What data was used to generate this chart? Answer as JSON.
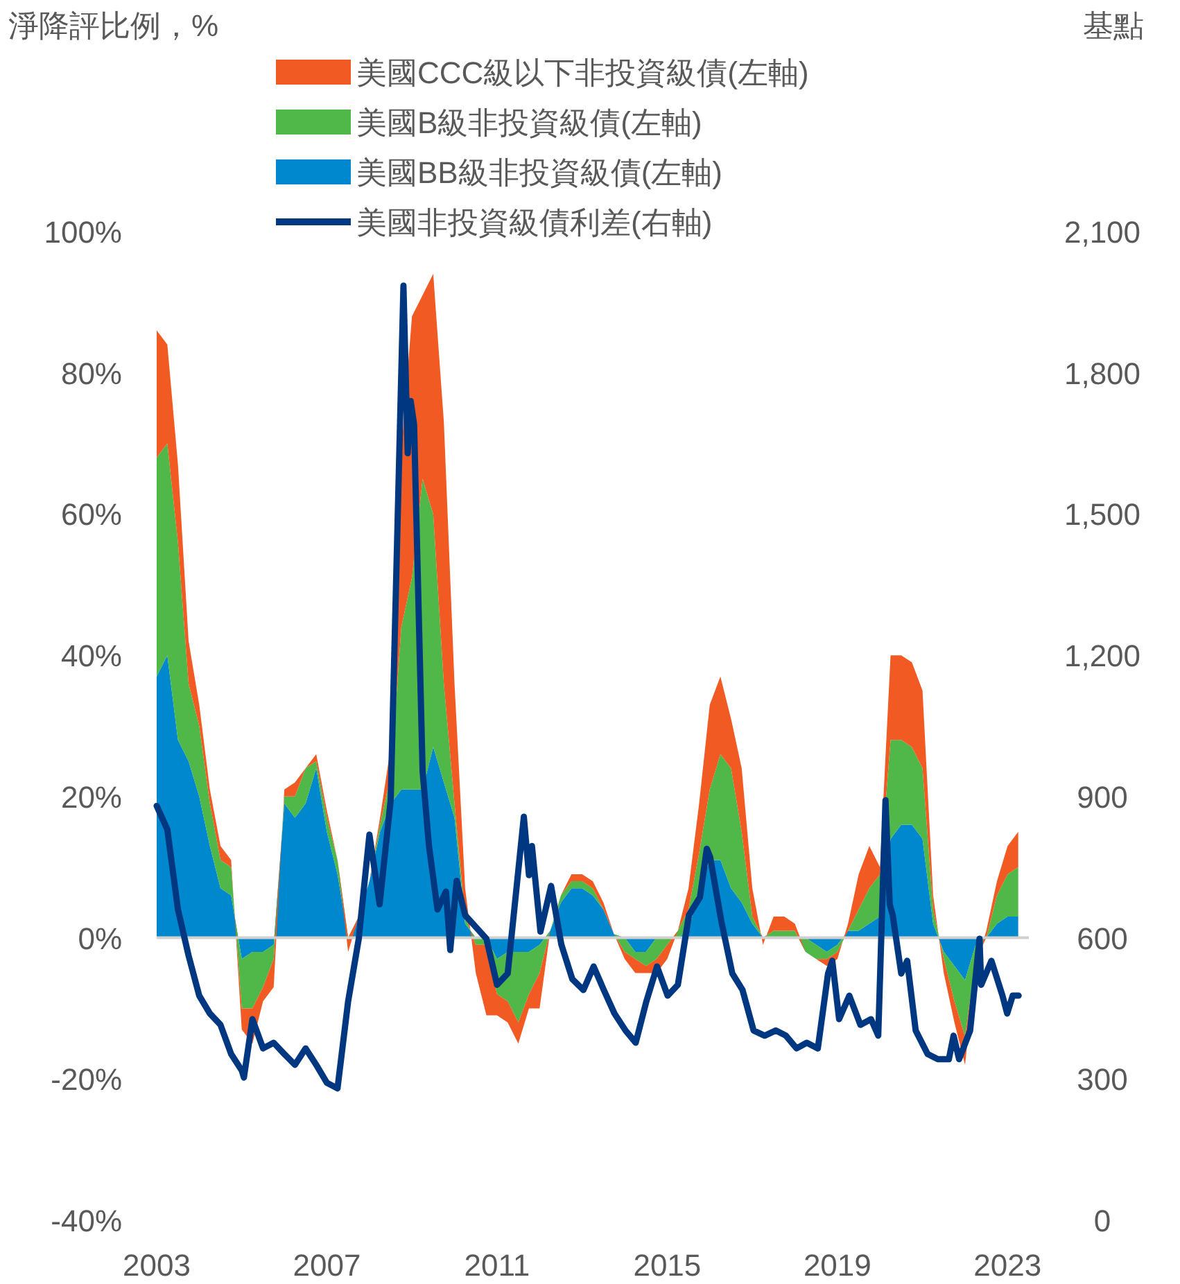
{
  "chart_data": {
    "type": "area",
    "stacked": true,
    "annotations": [
      "淨降評比例，%",
      "基點"
    ],
    "x": [
      2003.0,
      2003.25,
      2003.5,
      2003.75,
      2004.0,
      2004.25,
      2004.5,
      2004.75,
      2005.0,
      2005.25,
      2005.5,
      2005.75,
      2006.0,
      2006.25,
      2006.5,
      2006.75,
      2007.0,
      2007.25,
      2007.5,
      2007.75,
      2008.0,
      2008.25,
      2008.5,
      2008.75,
      2009.0,
      2009.25,
      2009.5,
      2009.75,
      2010.0,
      2010.25,
      2010.5,
      2010.75,
      2011.0,
      2011.25,
      2011.5,
      2011.75,
      2012.0,
      2012.25,
      2012.5,
      2012.75,
      2013.0,
      2013.25,
      2013.5,
      2013.75,
      2014.0,
      2014.25,
      2014.5,
      2014.75,
      2015.0,
      2015.25,
      2015.5,
      2015.75,
      2016.0,
      2016.25,
      2016.5,
      2016.75,
      2017.0,
      2017.25,
      2017.5,
      2017.75,
      2018.0,
      2018.25,
      2018.5,
      2018.75,
      2019.0,
      2019.25,
      2019.5,
      2019.75,
      2020.0,
      2020.25,
      2020.5,
      2020.75,
      2021.0,
      2021.25,
      2021.5,
      2021.75,
      2022.0,
      2022.25,
      2022.5,
      2022.75,
      2023.0,
      2023.25
    ],
    "series": [
      {
        "name": "美國BB級非投資級債(左軸)",
        "color": "#0088cf",
        "values": [
          37,
          40,
          28,
          25,
          20,
          13,
          7,
          6,
          -3,
          -2,
          -2,
          -1,
          19,
          17,
          19,
          24,
          15,
          9,
          0,
          3,
          8,
          15,
          19,
          21,
          21,
          21,
          27,
          22,
          17,
          2,
          0,
          0,
          -3,
          -2,
          -2,
          -2,
          -1,
          1,
          5,
          7,
          7,
          6,
          4,
          0.5,
          0,
          -2,
          -2,
          0,
          0,
          0,
          1,
          7,
          11,
          11,
          7,
          5,
          2,
          0,
          0,
          0,
          0,
          0,
          -1,
          -2,
          -1,
          1,
          1,
          2,
          3,
          14,
          16,
          16,
          14,
          2,
          -2,
          -4,
          -6,
          -1,
          0,
          2,
          3,
          3
        ]
      },
      {
        "name": "美國B級非投資級債(左軸)",
        "color": "#50b848",
        "values": [
          31,
          30,
          28,
          11,
          10,
          6,
          4,
          4,
          -7,
          -8,
          -5,
          -2,
          1,
          3,
          5,
          1,
          2,
          2,
          0,
          0,
          0,
          1,
          4,
          23,
          30,
          44,
          33,
          14,
          2,
          1,
          -1,
          -1,
          -5,
          -7,
          -10,
          -6,
          -4,
          0,
          1,
          1,
          1,
          1,
          0,
          0,
          -2,
          -1,
          -2,
          -3,
          -1,
          1,
          3,
          5,
          10,
          15,
          17,
          10,
          1,
          0,
          1,
          1,
          1,
          -2,
          -2,
          -1,
          -1,
          0,
          3,
          5,
          6,
          14,
          12,
          11,
          10,
          2,
          -1,
          -5,
          -8,
          -2,
          0,
          4,
          6,
          7
        ]
      },
      {
        "name": "美國CCC級以下非投資級債(左軸)",
        "color": "#f15a22",
        "values": [
          18,
          14,
          11,
          6,
          3,
          2,
          2,
          1,
          -3,
          -5,
          -2,
          -4,
          1,
          2,
          0,
          1,
          1,
          0,
          -2,
          0,
          0,
          1,
          4,
          25,
          37,
          26,
          34,
          37,
          17,
          4,
          -4,
          -10,
          -3,
          -3,
          -3,
          -2,
          -5,
          0,
          0,
          1,
          1,
          1,
          1,
          0,
          -1,
          -2,
          -1,
          -2,
          -2,
          0,
          3,
          7,
          12,
          11,
          7,
          9,
          4,
          -1,
          2,
          2,
          1,
          0,
          0,
          -1,
          -1,
          1,
          5,
          6,
          1,
          12,
          12,
          12,
          11,
          2,
          -2,
          -3,
          -4,
          -1,
          1,
          2,
          4,
          5
        ]
      },
      {
        "name": "美國非投資級債利差(右軸)",
        "type": "line",
        "axis": "y2",
        "color": "#003781",
        "x": [
          2003.0,
          2003.25,
          2003.5,
          2003.75,
          2004.0,
          2004.25,
          2004.5,
          2004.75,
          2005.0,
          2005.05,
          2005.25,
          2005.5,
          2005.75,
          2006.0,
          2006.25,
          2006.5,
          2006.75,
          2007.0,
          2007.25,
          2007.5,
          2007.75,
          2008.0,
          2008.24,
          2008.5,
          2008.8,
          2008.9,
          2008.97,
          2009.05,
          2009.25,
          2009.4,
          2009.6,
          2009.8,
          2009.9,
          2010.05,
          2010.25,
          2010.75,
          2011.0,
          2011.25,
          2011.63,
          2011.75,
          2011.82,
          2012.02,
          2012.27,
          2012.51,
          2012.77,
          2013.03,
          2013.27,
          2013.51,
          2013.76,
          2014.02,
          2014.26,
          2014.51,
          2014.76,
          2015.01,
          2015.25,
          2015.51,
          2015.77,
          2015.93,
          2016.01,
          2016.27,
          2016.53,
          2016.77,
          2017.03,
          2017.29,
          2017.55,
          2017.79,
          2018.04,
          2018.28,
          2018.54,
          2018.78,
          2018.88,
          2019.04,
          2019.28,
          2019.54,
          2019.79,
          2019.96,
          2020.13,
          2020.23,
          2020.3,
          2020.5,
          2020.64,
          2020.84,
          2021.12,
          2021.36,
          2021.62,
          2021.73,
          2021.86,
          2022.12,
          2022.34,
          2022.38,
          2022.62,
          2022.88,
          2022.99,
          2023.12,
          2023.26
        ],
        "values": [
          880,
          830,
          660,
          562,
          477,
          439,
          415,
          353,
          318,
          303,
          427,
          365,
          377,
          353,
          330,
          365,
          330,
          292,
          280,
          465,
          598,
          819,
          671,
          892,
          1985,
          1629,
          1740,
          1690,
          954,
          795,
          660,
          698,
          574,
          721,
          648,
          598,
          500,
          524,
          857,
          733,
          795,
          613,
          710,
          586,
          512,
          489,
          539,
          489,
          439,
          403,
          377,
          465,
          539,
          477,
          500,
          648,
          686,
          789,
          771,
          636,
          524,
          489,
          403,
          392,
          403,
          392,
          365,
          377,
          365,
          524,
          551,
          427,
          477,
          415,
          427,
          392,
          892,
          671,
          648,
          524,
          551,
          403,
          353,
          342,
          342,
          392,
          342,
          403,
          598,
          500,
          551,
          477,
          439,
          477,
          477
        ]
      }
    ],
    "xlim": [
      2003,
      2023.5
    ],
    "xticks": [
      2003,
      2007,
      2011,
      2015,
      2019,
      2023
    ],
    "ylim": [
      -40,
      100
    ],
    "yticks": [
      {
        "value": -40,
        "label": "-40%"
      },
      {
        "value": -20,
        "label": "-20%"
      },
      {
        "value": 0,
        "label": "0%"
      },
      {
        "value": 20,
        "label": "20%"
      },
      {
        "value": 40,
        "label": "40%"
      },
      {
        "value": 60,
        "label": "60%"
      },
      {
        "value": 80,
        "label": "80%"
      },
      {
        "value": 100,
        "label": "100%"
      }
    ],
    "y2lim": [
      0,
      2100
    ],
    "y2ticks": [
      {
        "value": 0,
        "label": "0"
      },
      {
        "value": 300,
        "label": "300"
      },
      {
        "value": 600,
        "label": "600"
      },
      {
        "value": 900,
        "label": "900"
      },
      {
        "value": 1200,
        "label": "1,200"
      },
      {
        "value": 1500,
        "label": "1,500"
      },
      {
        "value": 1800,
        "label": "1,800"
      },
      {
        "value": 2100,
        "label": "2,100"
      }
    ],
    "ref_lines": [
      {
        "axis": "y",
        "value": 0,
        "color": "#d0d0d0"
      }
    ],
    "legend": "top",
    "grid": false
  }
}
